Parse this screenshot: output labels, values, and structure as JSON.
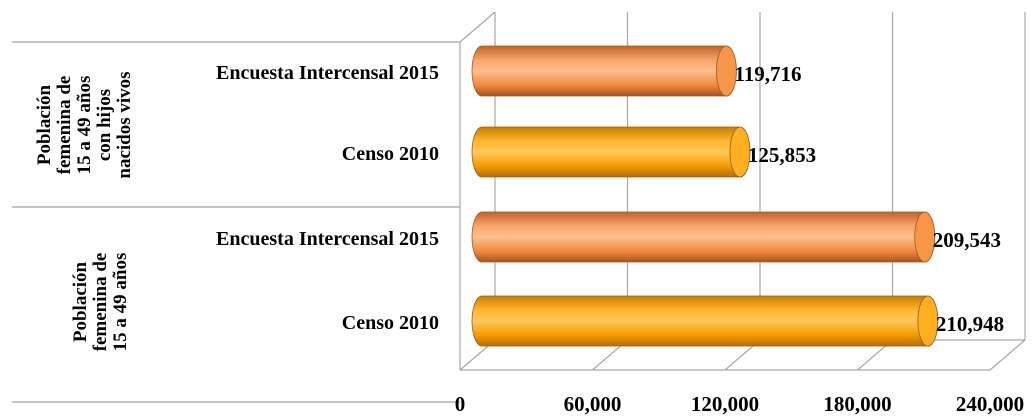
{
  "chart_data": {
    "type": "bar",
    "orientation": "horizontal",
    "style": "3d-cylinder",
    "groups": [
      {
        "label_lines": [
          "Población",
          "femenina de",
          "15 a 49 años",
          "con  hijos",
          "nacidos vivos"
        ],
        "bars": [
          {
            "label": "Encuesta Intercensal 2015",
            "value": 119716,
            "value_label": "119,716",
            "color": "#f79646"
          },
          {
            "label": "Censo 2010",
            "value": 125853,
            "value_label": "125,853",
            "color": "#ffa500"
          }
        ]
      },
      {
        "label_lines": [
          "Población",
          "femenina de",
          "15 a 49 años"
        ],
        "bars": [
          {
            "label": "Encuesta Intercensal 2015",
            "value": 209543,
            "value_label": "209,543",
            "color": "#f79646"
          },
          {
            "label": "Censo 2010",
            "value": 210948,
            "value_label": "210,948",
            "color": "#ffa500"
          }
        ]
      }
    ],
    "x_ticks": [
      0,
      60000,
      120000,
      180000,
      240000
    ],
    "x_tick_labels": [
      "0",
      "60,000",
      "120,000",
      "180,000",
      "240,000"
    ],
    "xlim": [
      0,
      240000
    ],
    "grid": true,
    "legend": "none"
  }
}
